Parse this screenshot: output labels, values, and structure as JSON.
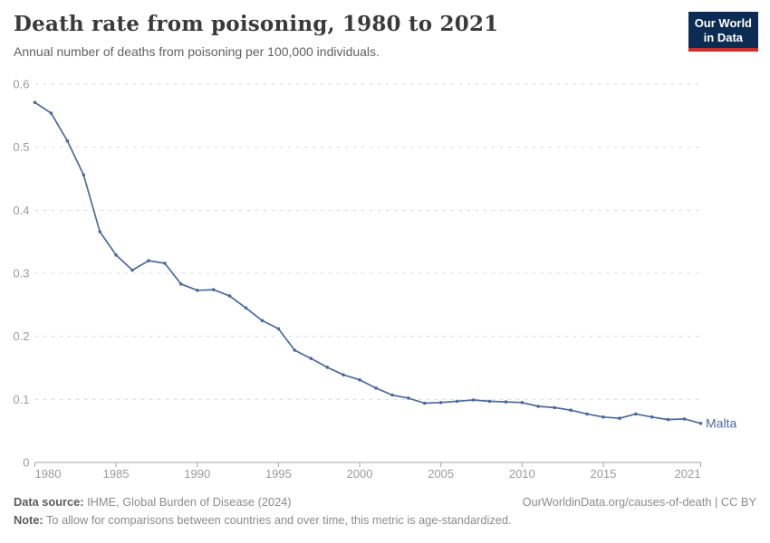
{
  "header": {
    "title": "Death rate from poisoning, 1980 to 2021",
    "subtitle": "Annual number of deaths from poisoning per 100,000 individuals.",
    "logo": {
      "line1": "Our World",
      "line2": "in Data"
    }
  },
  "chart_data": {
    "type": "line",
    "title": "Death rate from poisoning, 1980 to 2021",
    "xlabel": "",
    "ylabel": "",
    "xlim": [
      1980,
      2021
    ],
    "ylim": [
      0,
      0.6
    ],
    "xticks": [
      1980,
      1985,
      1990,
      1995,
      2000,
      2005,
      2010,
      2015,
      2021
    ],
    "yticks": [
      0,
      0.1,
      0.2,
      0.3,
      0.4,
      0.5,
      0.6
    ],
    "ytick_labels": [
      "0",
      "0.1",
      "0.2",
      "0.3",
      "0.4",
      "0.5",
      "0.6"
    ],
    "grid": "horizontal-dashed",
    "legend": "end-of-line-label",
    "series": [
      {
        "name": "Malta",
        "color": "#4c6a9c",
        "x": [
          1980,
          1981,
          1982,
          1983,
          1984,
          1985,
          1986,
          1987,
          1988,
          1989,
          1990,
          1991,
          1992,
          1993,
          1994,
          1995,
          1996,
          1997,
          1998,
          1999,
          2000,
          2001,
          2002,
          2003,
          2004,
          2005,
          2006,
          2007,
          2008,
          2009,
          2010,
          2011,
          2012,
          2013,
          2014,
          2015,
          2016,
          2017,
          2018,
          2019,
          2020,
          2021
        ],
        "values": [
          0.571,
          0.554,
          0.51,
          0.456,
          0.366,
          0.329,
          0.305,
          0.32,
          0.316,
          0.283,
          0.273,
          0.274,
          0.264,
          0.245,
          0.225,
          0.212,
          0.178,
          0.165,
          0.151,
          0.139,
          0.131,
          0.118,
          0.107,
          0.102,
          0.094,
          0.095,
          0.097,
          0.099,
          0.097,
          0.096,
          0.095,
          0.089,
          0.087,
          0.083,
          0.077,
          0.072,
          0.07,
          0.077,
          0.072,
          0.068,
          0.069,
          0.062
        ]
      }
    ]
  },
  "footer": {
    "source_label": "Data source:",
    "source_text": " IHME, Global Burden of Disease (2024)",
    "note_label": "Note:",
    "note_text": " To allow for comparisons between countries and over time, this metric is age-standardized.",
    "link": "OurWorldinData.org/causes-of-death | CC BY"
  },
  "colors": {
    "line": "#4c6a9c",
    "entity_label": "#4c6a9c",
    "grid": "#dcdcdc",
    "axis": "#a3a3a3",
    "tick_label": "#9a9a9a",
    "title": "#3a3a3a",
    "subtitle": "#616161",
    "footer_text": "#8b8b8b",
    "logo_bg": "#0c2c54",
    "logo_stripe": "#c9302c"
  }
}
